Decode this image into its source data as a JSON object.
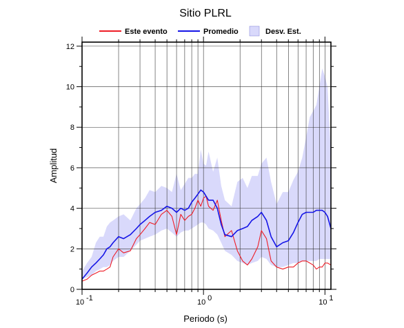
{
  "chart_data": {
    "type": "line",
    "title": "Sitio PLRL",
    "xlabel": "Periodo (s)",
    "ylabel": "Amplitud",
    "x_scale": "log",
    "xlim": [
      0.1,
      11.2
    ],
    "ylim": [
      0,
      12.2
    ],
    "grid": true,
    "legend_position": "top",
    "x_ticks": [
      0.1,
      1,
      10
    ],
    "x_tick_labels": [
      "10",
      "10",
      "10"
    ],
    "x_tick_exponents": [
      "-1",
      "0",
      "1"
    ],
    "y_ticks": [
      0,
      2,
      4,
      6,
      8,
      10,
      12
    ],
    "y_tick_labels": [
      "0",
      "2",
      "4",
      "6",
      "8",
      "10",
      "12"
    ],
    "legend": [
      {
        "label": "Este evento",
        "kind": "line",
        "color": "#ee1c25"
      },
      {
        "label": "Promedio",
        "kind": "line",
        "color": "#1414e6"
      },
      {
        "label": "Desv. Est.",
        "kind": "band",
        "color": "#d9d9fb",
        "stroke": "#7f7fd6"
      }
    ],
    "x": [
      0.1,
      0.11,
      0.12,
      0.13,
      0.14,
      0.15,
      0.16,
      0.17,
      0.18,
      0.2,
      0.22,
      0.25,
      0.28,
      0.3,
      0.33,
      0.36,
      0.4,
      0.45,
      0.5,
      0.55,
      0.6,
      0.65,
      0.7,
      0.75,
      0.8,
      0.85,
      0.9,
      0.95,
      1.0,
      1.05,
      1.1,
      1.2,
      1.3,
      1.4,
      1.5,
      1.7,
      1.9,
      2.1,
      2.3,
      2.5,
      2.8,
      3.0,
      3.3,
      3.6,
      4.0,
      4.5,
      5.0,
      5.5,
      6.0,
      6.5,
      7.0,
      7.5,
      8.0,
      8.5,
      9.0,
      9.5,
      10.0,
      10.5,
      11.2
    ],
    "series": [
      {
        "name": "Este evento",
        "color": "#ee1c25",
        "values": [
          0.4,
          0.5,
          0.7,
          0.8,
          0.9,
          0.9,
          1.0,
          1.1,
          1.6,
          2.0,
          1.8,
          1.9,
          2.5,
          2.7,
          3.0,
          3.3,
          3.2,
          3.7,
          3.9,
          3.6,
          2.7,
          3.7,
          3.4,
          3.6,
          3.7,
          4.0,
          4.4,
          4.1,
          4.5,
          4.6,
          4.1,
          3.9,
          4.4,
          3.4,
          2.6,
          2.9,
          1.9,
          1.4,
          1.2,
          1.5,
          2.1,
          2.9,
          2.5,
          1.4,
          1.1,
          1.0,
          1.1,
          1.1,
          1.3,
          1.4,
          1.4,
          1.3,
          1.2,
          1.0,
          1.1,
          1.1,
          1.3,
          1.3,
          1.2
        ]
      },
      {
        "name": "Promedio",
        "color": "#1414e6",
        "values": [
          0.5,
          0.8,
          1.1,
          1.3,
          1.5,
          1.7,
          2.0,
          2.1,
          2.3,
          2.6,
          2.5,
          2.7,
          3.0,
          3.2,
          3.4,
          3.6,
          3.8,
          3.9,
          4.1,
          4.0,
          3.8,
          4.0,
          3.9,
          4.0,
          4.3,
          4.5,
          4.7,
          4.9,
          4.8,
          4.6,
          4.4,
          4.4,
          4.0,
          3.2,
          2.7,
          2.6,
          2.9,
          3.0,
          3.1,
          3.4,
          3.6,
          3.8,
          3.4,
          2.6,
          2.1,
          2.3,
          2.4,
          2.8,
          3.3,
          3.7,
          3.8,
          3.8,
          3.8,
          3.9,
          3.9,
          3.9,
          3.8,
          3.6,
          3.0
        ]
      },
      {
        "name": "Desv. Est. (superior)",
        "color": "#d9d9fb",
        "values": [
          0.9,
          1.3,
          1.6,
          2.3,
          2.6,
          2.6,
          3.1,
          3.3,
          3.4,
          3.6,
          3.7,
          3.4,
          4.0,
          4.2,
          4.5,
          4.9,
          4.8,
          5.1,
          5.0,
          4.8,
          5.7,
          4.9,
          5.2,
          5.5,
          5.5,
          5.7,
          5.7,
          6.9,
          6.2,
          6.1,
          6.8,
          5.8,
          6.5,
          5.1,
          4.4,
          4.1,
          5.3,
          5.5,
          5.0,
          5.6,
          5.6,
          6.2,
          6.5,
          5.3,
          4.2,
          4.8,
          4.8,
          5.4,
          5.8,
          6.5,
          7.5,
          8.5,
          8.8,
          9.1,
          10.0,
          10.9,
          10.5,
          10.0,
          6.7
        ]
      },
      {
        "name": "Desv. Est. (inferior)",
        "color": "#d9d9fb",
        "values": [
          0.5,
          0.6,
          0.7,
          0.9,
          1.0,
          1.1,
          1.1,
          1.2,
          1.4,
          1.6,
          1.6,
          1.9,
          2.2,
          2.4,
          2.5,
          2.6,
          2.7,
          2.9,
          3.0,
          2.8,
          2.6,
          2.8,
          2.9,
          2.9,
          3.0,
          3.1,
          3.2,
          3.3,
          3.3,
          3.2,
          3.0,
          2.9,
          2.7,
          2.3,
          1.9,
          1.7,
          1.4,
          1.3,
          1.2,
          1.3,
          1.4,
          1.6,
          1.5,
          1.2,
          1.1,
          1.1,
          1.2,
          1.3,
          1.3,
          1.4,
          1.4,
          1.4,
          1.4,
          1.4,
          1.5,
          1.5,
          1.5,
          1.5,
          1.5
        ]
      }
    ]
  }
}
